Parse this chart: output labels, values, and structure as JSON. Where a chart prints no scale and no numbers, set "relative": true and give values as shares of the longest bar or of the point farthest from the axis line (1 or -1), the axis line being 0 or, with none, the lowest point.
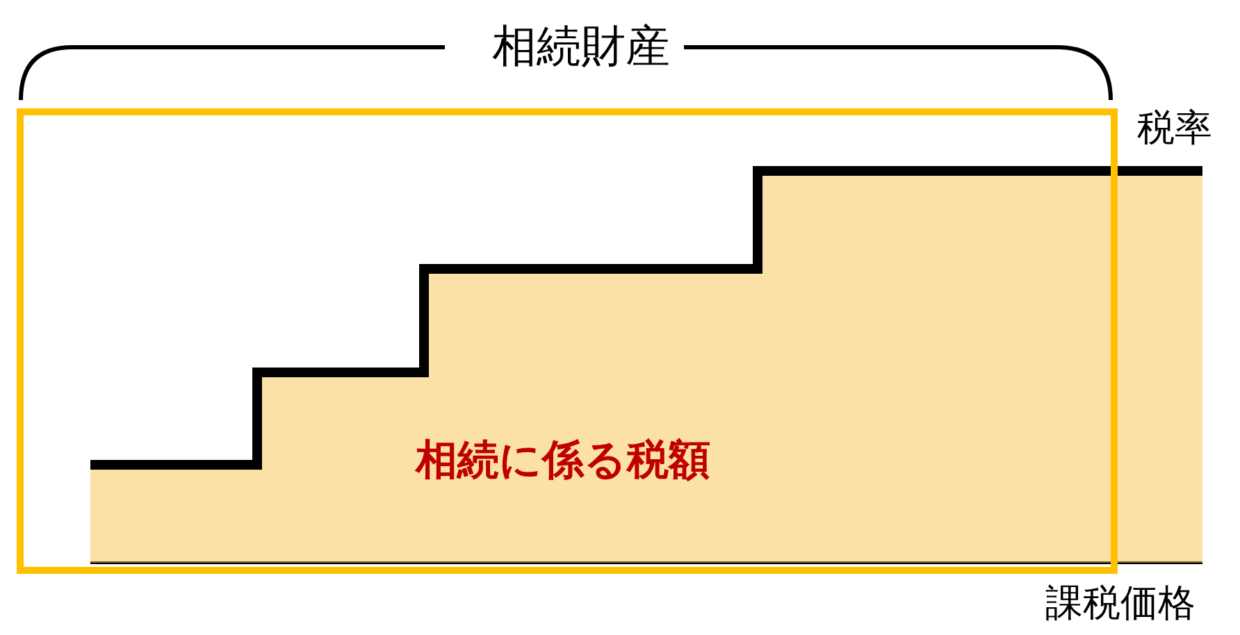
{
  "chart_data": {
    "type": "step",
    "title": "相続財産",
    "xlabel": "課税価格",
    "ylabel": "税率",
    "annotations": [
      "相続に係る税額"
    ],
    "relative": true,
    "legend": false,
    "categories": [
      null,
      null,
      null,
      null,
      null,
      null,
      null,
      null,
      null,
      null,
      null,
      null,
      null,
      null,
      null,
      null,
      null,
      null,
      null,
      null,
      null
    ],
    "series": [
      {
        "type": "area",
        "color": "#f8c450",
        "values": [
          0.25,
          0.25,
          0.25,
          0.486,
          0.486,
          0.486,
          0.75,
          0.75,
          0.75,
          0.75,
          0.75,
          0.75,
          1,
          1,
          1,
          1,
          1,
          1,
          1,
          1,
          1
        ]
      },
      {
        "color": "#000000",
        "values": [
          0.25,
          0.25,
          0.25,
          0.486,
          0.486,
          0.486,
          0.75,
          0.75,
          0.75,
          0.75,
          0.75,
          0.75,
          1,
          1,
          1,
          1,
          1,
          1,
          1,
          1,
          1
        ]
      }
    ]
  }
}
